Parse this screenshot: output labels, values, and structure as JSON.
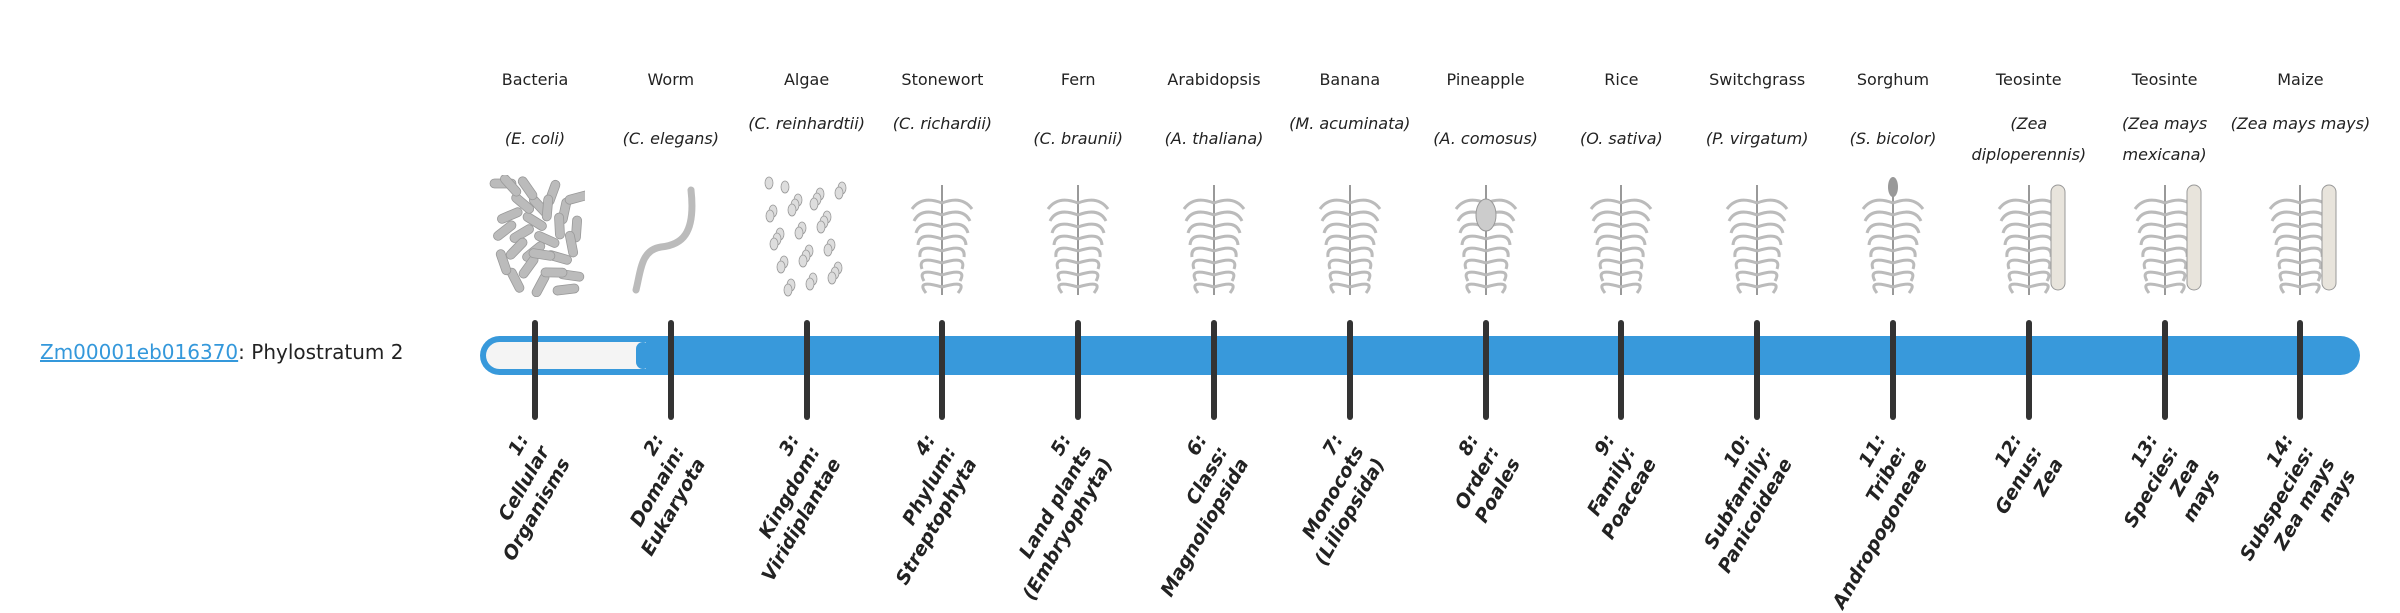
{
  "gene": {
    "id": "Zm00001eb016370",
    "suffix": ": Phylostratum 2"
  },
  "progress": {
    "current_stratum": 2,
    "total_strata": 14
  },
  "colors": {
    "bar": "#3899db",
    "tick": "#333333",
    "link": "#3498db",
    "inactive_fill": "#f4f4f4"
  },
  "strata": [
    {
      "common": "Bacteria",
      "species": "(E. coli)",
      "rank": "1:\nCellular\nOrganisms",
      "icon": "bacteria-icon"
    },
    {
      "common": "Worm",
      "species": "(C. elegans)",
      "rank": "2:\nDomain:\nEukaryota",
      "icon": "worm-icon"
    },
    {
      "common": "Algae",
      "species": "(C. reinhardtii)",
      "rank": "3:\nKingdom:\nViridiplantae",
      "icon": "algae-icon"
    },
    {
      "common": "Stonewort",
      "species": "(C. richardii)",
      "rank": "4:\nPhylum:\nStreptophyta",
      "icon": "stonewort-icon"
    },
    {
      "common": "Fern",
      "species": "(C. braunii)",
      "rank": "5:\nLand plants\n(Embryophyta)",
      "icon": "fern-icon"
    },
    {
      "common": "Arabidopsis",
      "species": "(A. thaliana)",
      "rank": "6:\nClass:\nMagnoliopsida",
      "icon": "arabidopsis-icon"
    },
    {
      "common": "Banana",
      "species": "(M. acuminata)",
      "rank": "7:\nMonocots\n(Liliopsida)",
      "icon": "banana-icon"
    },
    {
      "common": "Pineapple",
      "species": "(A. comosus)",
      "rank": "8:\nOrder:\nPoales",
      "icon": "pineapple-icon"
    },
    {
      "common": "Rice",
      "species": "(O. sativa)",
      "rank": "9:\nFamily:\nPoaceae",
      "icon": "rice-icon"
    },
    {
      "common": "Switchgrass",
      "species": "(P. virgatum)",
      "rank": "10:\nSubfamily:\nPanicoideae",
      "icon": "switchgrass-icon"
    },
    {
      "common": "Sorghum",
      "species": "(S. bicolor)",
      "rank": "11:\nTribe:\nAndropogoneae",
      "icon": "sorghum-icon"
    },
    {
      "common": "Teosinte",
      "species": "(Zea diploperennis)",
      "rank": "12:\nGenus:\nZea",
      "icon": "teosinte-icon"
    },
    {
      "common": "Teosinte",
      "species": "(Zea mays mexicana)",
      "rank": "13:\nSpecies:\nZea\nmays",
      "icon": "teosinte-icon"
    },
    {
      "common": "Maize",
      "species": "(Zea mays mays)",
      "rank": "14:\nSubspecies:\nZea mays\nmays",
      "icon": "maize-icon"
    }
  ]
}
